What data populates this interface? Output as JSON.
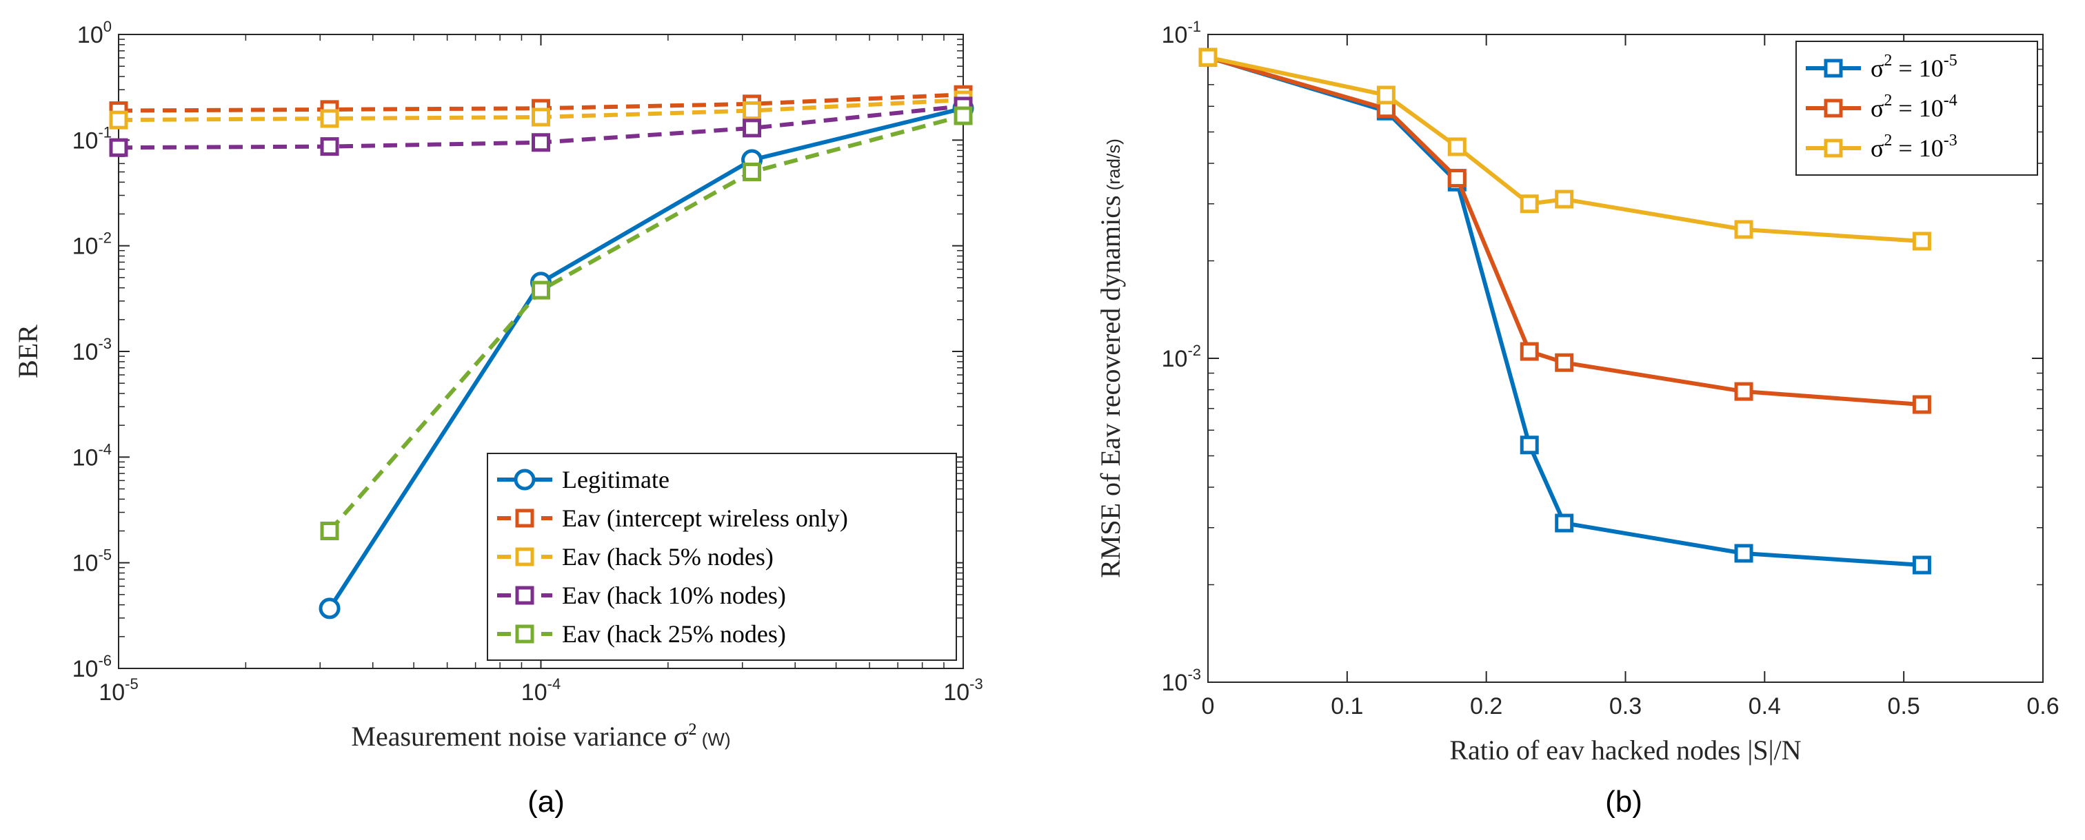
{
  "charts": [
    {
      "caption": "(a)",
      "chart_data": {
        "type": "line",
        "xscale": "log",
        "yscale": "log",
        "xlim": [
          1e-05,
          0.001
        ],
        "ylim": [
          1e-06,
          1
        ],
        "xlabel": "Measurement noise variance σ",
        "xlabel_sup": "2",
        "xlabel_unit": "(W)",
        "ylabel": "BER",
        "xticks": [
          {
            "value": 1e-05,
            "base": "10",
            "exp": "-5"
          },
          {
            "value": 0.0001,
            "base": "10",
            "exp": "-4"
          },
          {
            "value": 0.001,
            "base": "10",
            "exp": "-3"
          }
        ],
        "yticks": [
          {
            "value": 1e-06,
            "base": "10",
            "exp": "-6"
          },
          {
            "value": 1e-05,
            "base": "10",
            "exp": "-5"
          },
          {
            "value": 0.0001,
            "base": "10",
            "exp": "-4"
          },
          {
            "value": 0.001,
            "base": "10",
            "exp": "-3"
          },
          {
            "value": 0.01,
            "base": "10",
            "exp": "-2"
          },
          {
            "value": 0.1,
            "base": "10",
            "exp": "-1"
          },
          {
            "value": 1,
            "base": "10",
            "exp": "0"
          }
        ],
        "legend_position": "bottom-right",
        "series": [
          {
            "name": "Legitimate",
            "color": "#0072BD",
            "dash": "solid",
            "marker": "circle",
            "x": [
              3.16e-05,
              0.0001,
              0.000316,
              0.001
            ],
            "y": [
              3.7e-06,
              0.0045,
              0.065,
              0.2
            ]
          },
          {
            "name": "Eav (intercept wireless only)",
            "color": "#D95319",
            "dash": "dashed",
            "marker": "square",
            "x": [
              1e-05,
              3.16e-05,
              0.0001,
              0.000316,
              0.001
            ],
            "y": [
              0.19,
              0.195,
              0.2,
              0.22,
              0.27
            ]
          },
          {
            "name": "Eav (hack 5% nodes)",
            "color": "#EDB120",
            "dash": "dashed",
            "marker": "square",
            "x": [
              1e-05,
              3.16e-05,
              0.0001,
              0.000316,
              0.001
            ],
            "y": [
              0.155,
              0.16,
              0.165,
              0.19,
              0.24
            ]
          },
          {
            "name": "Eav (hack 10% nodes)",
            "color": "#7E2F8E",
            "dash": "dashed",
            "marker": "square",
            "x": [
              1e-05,
              3.16e-05,
              0.0001,
              0.000316,
              0.001
            ],
            "y": [
              0.085,
              0.087,
              0.095,
              0.13,
              0.21
            ]
          },
          {
            "name": "Eav (hack 25% nodes)",
            "color": "#77AC30",
            "dash": "dashed",
            "marker": "square",
            "x": [
              3.16e-05,
              0.0001,
              0.000316,
              0.001
            ],
            "y": [
              2e-05,
              0.0038,
              0.05,
              0.17
            ]
          }
        ]
      }
    },
    {
      "caption": "(b)",
      "chart_data": {
        "type": "line",
        "xscale": "linear",
        "yscale": "log",
        "xlim": [
          0,
          0.6
        ],
        "ylim": [
          0.001,
          0.1
        ],
        "xlabel": "Ratio of eav hacked nodes |S|/N",
        "ylabel": "RMSE of Eav recovered dynamics",
        "ylabel_unit": "(rad/s)",
        "xticks": [
          {
            "value": 0,
            "label": "0"
          },
          {
            "value": 0.1,
            "label": "0.1"
          },
          {
            "value": 0.2,
            "label": "0.2"
          },
          {
            "value": 0.3,
            "label": "0.3"
          },
          {
            "value": 0.4,
            "label": "0.4"
          },
          {
            "value": 0.5,
            "label": "0.5"
          },
          {
            "value": 0.6,
            "label": "0.6"
          }
        ],
        "yticks": [
          {
            "value": 0.001,
            "base": "10",
            "exp": "-3"
          },
          {
            "value": 0.01,
            "base": "10",
            "exp": "-2"
          },
          {
            "value": 0.1,
            "base": "10",
            "exp": "-1"
          }
        ],
        "legend_position": "top-right",
        "series": [
          {
            "name": "σ",
            "name_sup": "2",
            "name_rest": " = 10",
            "name_exp": "-5",
            "color": "#0072BD",
            "dash": "solid",
            "marker": "square",
            "x": [
              0,
              0.128,
              0.179,
              0.231,
              0.256,
              0.385,
              0.513
            ],
            "y": [
              0.085,
              0.058,
              0.035,
              0.0054,
              0.0031,
              0.0025,
              0.0023
            ]
          },
          {
            "name": "σ",
            "name_sup": "2",
            "name_rest": " = 10",
            "name_exp": "-4",
            "color": "#D95319",
            "dash": "solid",
            "marker": "square",
            "x": [
              0,
              0.128,
              0.179,
              0.231,
              0.256,
              0.385,
              0.513
            ],
            "y": [
              0.085,
              0.059,
              0.036,
              0.0105,
              0.0097,
              0.0079,
              0.0072
            ]
          },
          {
            "name": "σ",
            "name_sup": "2",
            "name_rest": " = 10",
            "name_exp": "-3",
            "color": "#EDB120",
            "dash": "solid",
            "marker": "square",
            "x": [
              0,
              0.128,
              0.179,
              0.231,
              0.256,
              0.385,
              0.513
            ],
            "y": [
              0.085,
              0.065,
              0.045,
              0.03,
              0.031,
              0.025,
              0.023
            ]
          }
        ]
      }
    }
  ]
}
